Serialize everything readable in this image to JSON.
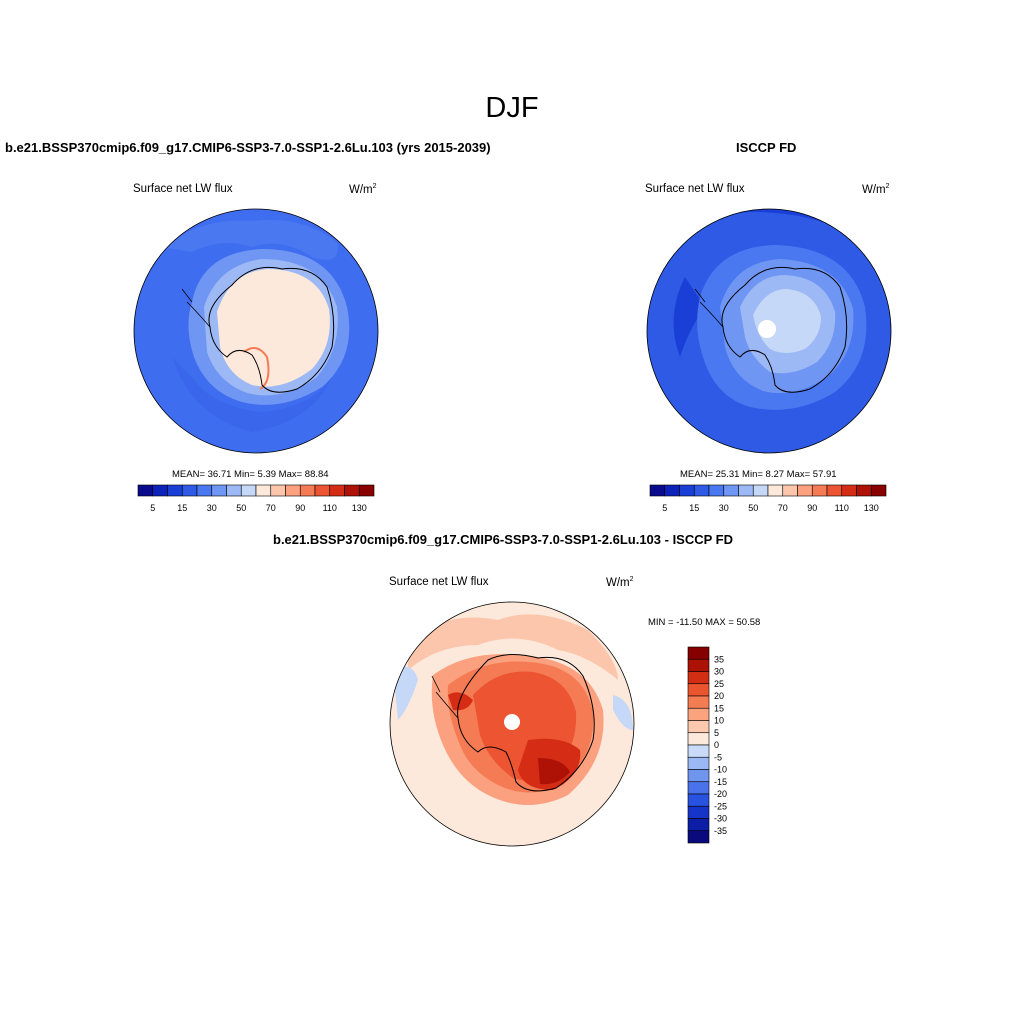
{
  "figure_title": "DJF",
  "panels": [
    {
      "title": "b.e21.BSSP370cmip6.f09_g17.CMIP6-SSP3-7.0-SSP1-2.6Lu.103 (yrs 2015-2039)",
      "variable": "Surface net LW flux",
      "units": "W/m",
      "units_sup": "2",
      "stats": "MEAN=  36.71  Min=   5.39  Max=  88.84"
    },
    {
      "title": "ISCCP FD",
      "variable": "Surface net LW flux",
      "units": "W/m",
      "units_sup": "2",
      "stats": "MEAN=  25.31  Min=   8.27  Max=  57.91"
    },
    {
      "title": "b.e21.BSSP370cmip6.f09_g17.CMIP6-SSP3-7.0-SSP1-2.6Lu.103 - ISCCP FD",
      "variable": "Surface net LW flux",
      "units": "W/m",
      "units_sup": "2",
      "stats": "MIN = -11.50 MAX =  50.58"
    }
  ],
  "colorbar_abs": {
    "colors": [
      "#0a0a8c",
      "#0d22b8",
      "#1a3fd6",
      "#2e5ae6",
      "#4a78f0",
      "#7096f3",
      "#9cb8f5",
      "#c6d8f7",
      "#fde9dc",
      "#fcc6ad",
      "#fba17f",
      "#f57b54",
      "#ec5432",
      "#d52d15",
      "#ae1207",
      "#880000"
    ],
    "labels": [
      "5",
      "15",
      "30",
      "50",
      "70",
      "90",
      "110",
      "130"
    ]
  },
  "colorbar_diff": {
    "colors": [
      "#0a0a7c",
      "#0c1ea6",
      "#1634c8",
      "#2852e0",
      "#4a72ea",
      "#7095ef",
      "#9cb8f4",
      "#c9dbf8",
      "#fde9dc",
      "#fcc8ae",
      "#faa37e",
      "#f47c52",
      "#ea5530",
      "#d22e14",
      "#ac1206",
      "#870000"
    ],
    "labels": [
      "35",
      "30",
      "25",
      "20",
      "15",
      "10",
      "5",
      "0",
      "-5",
      "-10",
      "-15",
      "-20",
      "-25",
      "-30",
      "-35"
    ]
  },
  "colors": {
    "ocean_model": "#3f6df0",
    "ocean_obs": "#2e5ae6",
    "diff_background": "#fde9dc"
  }
}
